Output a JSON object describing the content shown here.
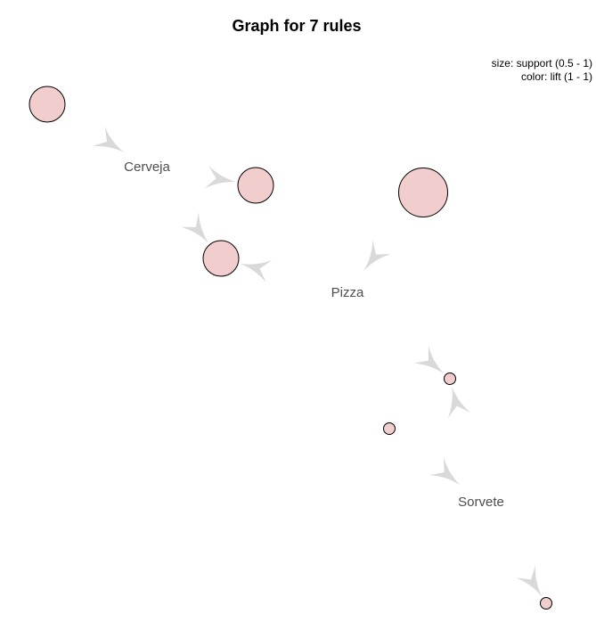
{
  "title": "Graph for 7 rules",
  "legend": {
    "size_text": "size: support (0.5 - 1)",
    "color_text": "color: lift (1 - 1)"
  },
  "colors": {
    "rule_fill": "#f2cdcd",
    "arrow_fill": "#d9d9d9",
    "label_text": "#4d4d4d"
  },
  "items": [
    {
      "id": "cerveja",
      "label": "Cerveja"
    },
    {
      "id": "pizza",
      "label": "Pizza"
    },
    {
      "id": "sorvete",
      "label": "Sorvete"
    }
  ],
  "rules": [
    {
      "id": "r1",
      "support": 0.75,
      "lift": 1
    },
    {
      "id": "r2",
      "support": 0.75,
      "lift": 1
    },
    {
      "id": "r3",
      "support": 1.0,
      "lift": 1
    },
    {
      "id": "r4",
      "support": 0.75,
      "lift": 1
    },
    {
      "id": "r5",
      "support": 0.5,
      "lift": 1
    },
    {
      "id": "r6",
      "support": 0.5,
      "lift": 1
    },
    {
      "id": "r7",
      "support": 0.5,
      "lift": 1
    }
  ],
  "edges": [
    {
      "from": "r1",
      "to": "cerveja"
    },
    {
      "from": "cerveja",
      "to": "r2"
    },
    {
      "from": "cerveja",
      "to": "r4"
    },
    {
      "from": "r3",
      "to": "pizza"
    },
    {
      "from": "pizza",
      "to": "r4"
    },
    {
      "from": "pizza",
      "to": "r5"
    },
    {
      "from": "r6",
      "to": "sorvete"
    },
    {
      "from": "sorvete",
      "to": "r5"
    },
    {
      "from": "sorvete",
      "to": "r7"
    }
  ]
}
